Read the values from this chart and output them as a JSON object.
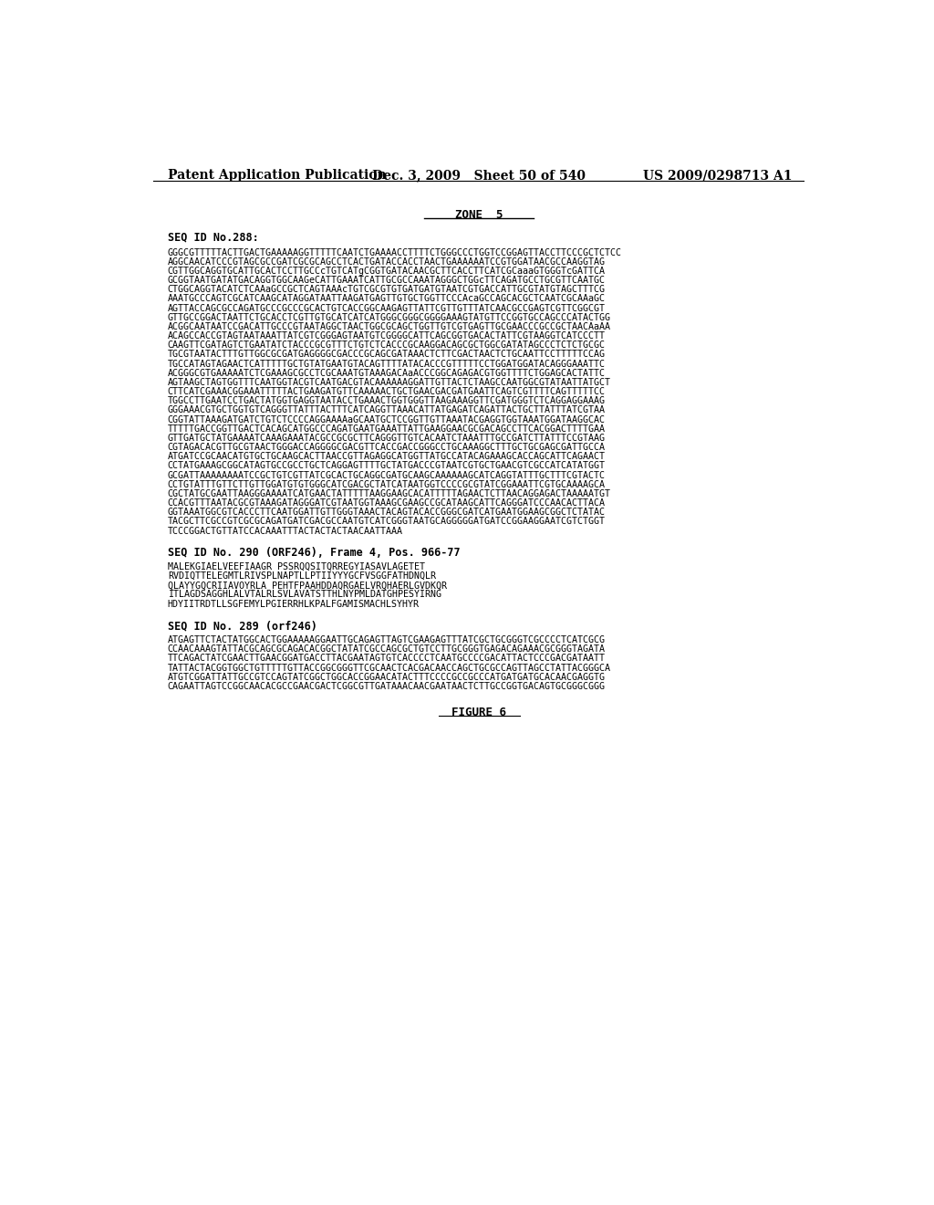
{
  "header_left": "Patent Application Publication",
  "header_middle": "Dec. 3, 2009   Sheet 50 of 540",
  "header_right": "US 2009/0298713 A1",
  "zone_label": "ZONE  5",
  "seq288_label": "SEQ ID No.288:",
  "seq288_text": [
    "GGGCGTTTTTACTTGACTGAAAAAGGTTTTTCAATCTGAAAACCTTTTCTGGGCCCTGGTCCGGAGTTACCTTCCCGCTCTCC",
    "AGGCAACATCCCGTAGCGCCGATCGCGCAGCCTCACTGATACCACCTAACTGAAAAAATCCGTGGATAACGCCAAGGTAG",
    "CGTTGGCAGGTGCATTGCACTCCTTGCCcTGTCATgCGGTGATACAACGCTTCACCTTCATCGCaaaGTGGGTcGATTCA",
    "GCGGTAATGATATGACAGGTGGCAAGeCATTGAAATCATTGCGCCAAATAGGGCTGGcTTCAGATGCCTGCGTTCAATGC",
    "CTGGCAGGTACATCTCAAaGCCGCTCAGTAAAcTGTCGCGTGTGATGATGTAATCGTGACCATTGCGTATGTAGCTTTCG",
    "AAATGCCCAGTCGCATCAAGCATAGGATAATTAAGATGAGTTGTGCTGGTTCCCAcaGCCAGCACGCTCAATCGCAAaGC",
    "AGTTACCAGCGCCAGATGCCCGCCCGCACTGTCACCGGCAAGAGTTATTCGTTGTTTATCAACGCCGAGTCGTTCGGCGT",
    "GTTGCCGGACTAATTCTGCACCTCGTTGTGCATCATCATGGGCGGGCGGGGAAAGTATGTTCCGGTGCCAGCCCATACTGG",
    "ACGGCAATAATCCGACATTGCCCGTAATAGGCTAACTGGCGCAGCTGGTTGTCGTGAGTTGCGAACCCGCCGCTAACAaAA",
    "ACAGCCACCGTAGTAATAAATTATCGTCGGGAGTAATGTCGGGGCATTCAGCGGTGACACTATTCGTAAGGTCATCCCTT",
    "CAAGTTCGATAGTCTGAATATCTACCCGCGTTTCTGTCTCACCCGCAAGGACAGCGCTGGCGATATAGCCCTCTCTGCGC",
    "TGCGTAATACTTTGTTGGCGCGATGAGGGGCGACCCGCAGCGATAAACTCTTCGACTAACTCTGCAATTCCTTTTTCCAG",
    "TGCCATAGTAGAACTCATTTTTGCTGTATGAATGTACAGTTTTATACACCCGTTTTTCCTGGATGGATACAGGGAAATTC",
    "ACGGGCGTGAAAAATCTCGAAAGCGCCTCGCAAATGTAAAGACAaACCCGGCAGAGACGTGGTTTTCTGGAGCACTATTC",
    "AGTAAGCTAGTGGTTTCAATGGTACGTCAATGACGTACAAAAAAGGATTGTTACTCTAAGCCAATGGCGTATAATTATGCT",
    "CTTCATCGAAACGGAAATTTTTACTGAAGATGTTCAAAAACTGCTGAACGACGATGAATTCAGTCGTTTTCAGTTTTTCC",
    "TGGCCTTGAATCCTGACTATGGTGAGGTAATACCTGAAACTGGTGGGTTAAGAAAGGTTCGATGGGTCTCAGGAGGAAAG",
    "GGGAAACGTGCTGGTGTCAGGGTTATTTACTTTCATCAGGTTAAACATTATGAGATCAGATTACTGCTTATTTATCGTAA",
    "CGGTATTAAAGATGATCTGTCTCCCCAGGAAAAaGCAATGCTCCGGTTGTTAAATACGAGGTGGTAAATGGATAAGGCAC",
    "TTTTTGACCGGTTGACTCACAGCATGGCCCAGATGAATGAAATTATTGAAGGAACGCGACAGCCTTCACGGACTTTTGAA",
    "GTTGATGCTATGAAAATCAAAGAAATACGCCGCGCTTCAGGGTTGTCACAATCTAAATTTGCCGATCTTATTTCCGTAAG",
    "CGTAGACACGTTGCGTAACTGGGACCAGGGGCGACGTTCACCGACCGGGCCTGCAAAGGCTTTGCTGCGAGCGATTGCCA",
    "ATGATCCGCAACATGTGCTGCAAGCACTTAACCGTTAGAGGCATGGTTATGCCATACAGAAAGCACCAGCATTCAGAACT",
    "CCTATGAAAGCGGCATAGTGCCGCCTGCTCAGGAGTTTTGCTATGACCCGTAATCGTGCTGAACGTCGCCATCATATGGT",
    "GCGATTAAAAAAAATCCGCTGTCGTTATCGCACTGCAGGCGATGCAAGCAAAAAAGCATCAGGTATTTGCTTTCGTACTC",
    "CCTGTATTTGTTCTTGTTGGATGTGTGGGCATCGACGCTATCATAATGGTCCCCGCGTATCGGAAATTCGTGCAAAAGCA",
    "CGCTATGCGAATTAAGGGAAAATCATGAACTATTTTTAAGGAAGCACATTTTTAGAACTCTTAACAGGAGACTAAAAATGT",
    "CCACGTTTAATACGCGTAAAGATAGGGATCGTAATGGTAAAGCGAAGCCGCATAAGCATTCAGGGATCCCAACACTTACA",
    "GGTAAATGGCGTCACCCTTCAATGGATTGTTGGGTAAACTACAGTACACCGGGCGATCATGAATGGAAGCGGCTCTATAC",
    "TACGCTTCGCCGTCGCGCAGATGATCGACGCCAATGTCATCGGGTAATGCAGGGGGATGATCCGGAAGGAATCGTCTGGT",
    "TCCCGGACTGTTATCCACAAATTTACTACTACTAACAATTAAA"
  ],
  "seq290_label": "SEQ ID No. 290 (ORF246), Frame 4, Pos. 966-77",
  "seq290_text": [
    "MALEKGIAELVEEFIAAGR PSSRQQSITQRREGYIASAVLAGETET",
    "RVDIQTTELEGMTLRIVSPLNAPTLLPTIIYYYGCFVSGGFATHDNQLR",
    "QLAYYGQCRIIAVOYRLA PEHTFPAAHDDAQRGAELVRQHAERLGVDKQR",
    "ITLAGDSAGGHLALVTALRLSVLAVATSTTHLNYPMLDATGHPESYIRNG",
    "HDYIITRDTLLSGFEMYLPGIERRHLKPALFGAMISMACHLSYHYR"
  ],
  "seq289_label": "SEQ ID No. 289 (orf246)",
  "seq289_text": [
    "ATGAGTTCTACTATGGCACTGGAAAAAGGAATTGCAGAGTTAGTCGAAGAGTTTATCGCTGCGGGTCGCCCCTCATCGCG",
    "CCAACAAAGTATTACGCAGCGCAGACACGGCTATATCGCCAGCGCTGTCCTTGCGGGTGAGACAGAAACGCGGGTAGATA",
    "TTCAGACTATCGAACTTGAACGGATGACCTTACGAATAGTGTCACCCCTCAATGCCCCGACATTACTCCCGACGATAATT",
    "TATTACTACGGTGGCTGTTTTTGTTACCGGCGGGTTCGCAACTCACGACAACCAGCTGCGCCAGTTAGCCTATTACGGGCA",
    "ATGTCGGATTATTGCCGTCCAGTATCGGCTGGCACCGGAACATACTTTCCCCGCCGCCCATGATGATGCACAACGAGGTG",
    "CAGAATTAGTCCGGCAACACGCCGAACGACTCGGCGTTGATAAACAACGAATAACTCTTGCCGGTGACAGTGCGGGCGGG"
  ],
  "figure_label": "FIGURE 6",
  "bg_color": "#ffffff",
  "text_color": "#000000"
}
